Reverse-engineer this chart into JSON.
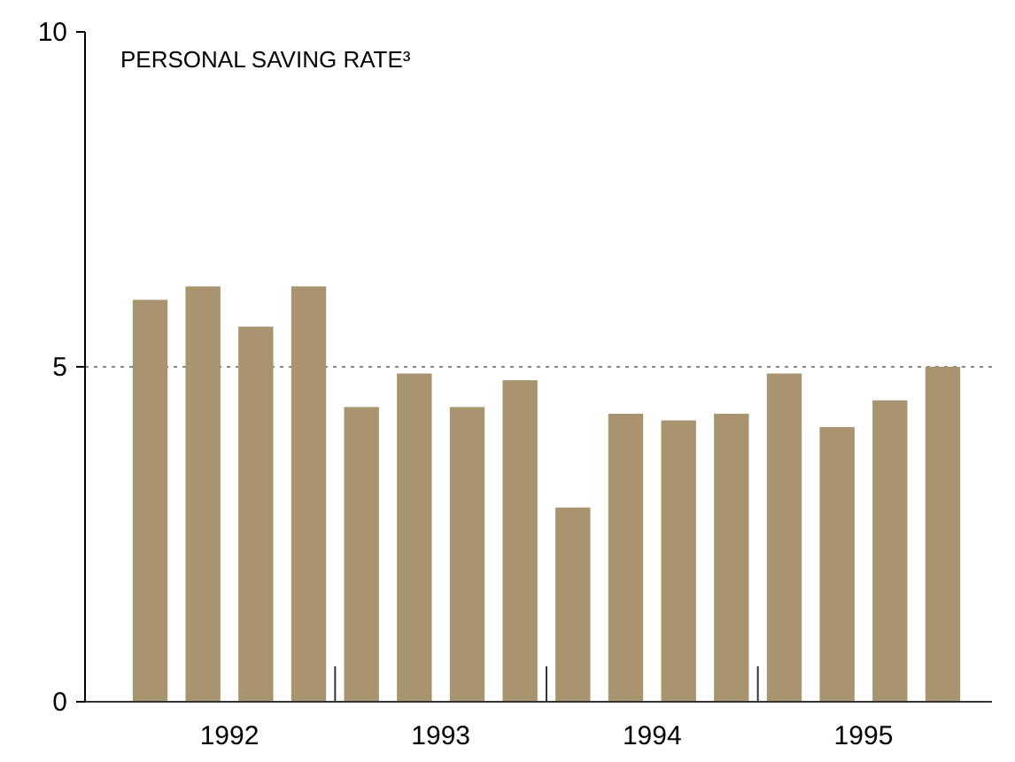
{
  "chart_data": {
    "type": "bar",
    "title": "PERSONAL SAVING RATE³",
    "categories": [
      null,
      null,
      null,
      null,
      null,
      null,
      null,
      null,
      null,
      null,
      null,
      null,
      null,
      null,
      null,
      null
    ],
    "values": [
      6.0,
      6.2,
      5.6,
      6.2,
      4.4,
      4.9,
      4.4,
      4.8,
      2.9,
      4.3,
      4.2,
      4.3,
      4.9,
      4.1,
      4.5,
      5.0
    ],
    "color": "#a8946e",
    "annotations": [
      "1992",
      "1993",
      "1994",
      "1995"
    ],
    "ylim": [
      0,
      10
    ],
    "yticks": [
      0,
      5,
      10
    ],
    "ref_lines": [
      {
        "axis": "y",
        "value": 5,
        "line_style": "dotted",
        "color": "#888888"
      }
    ],
    "grid": false
  }
}
